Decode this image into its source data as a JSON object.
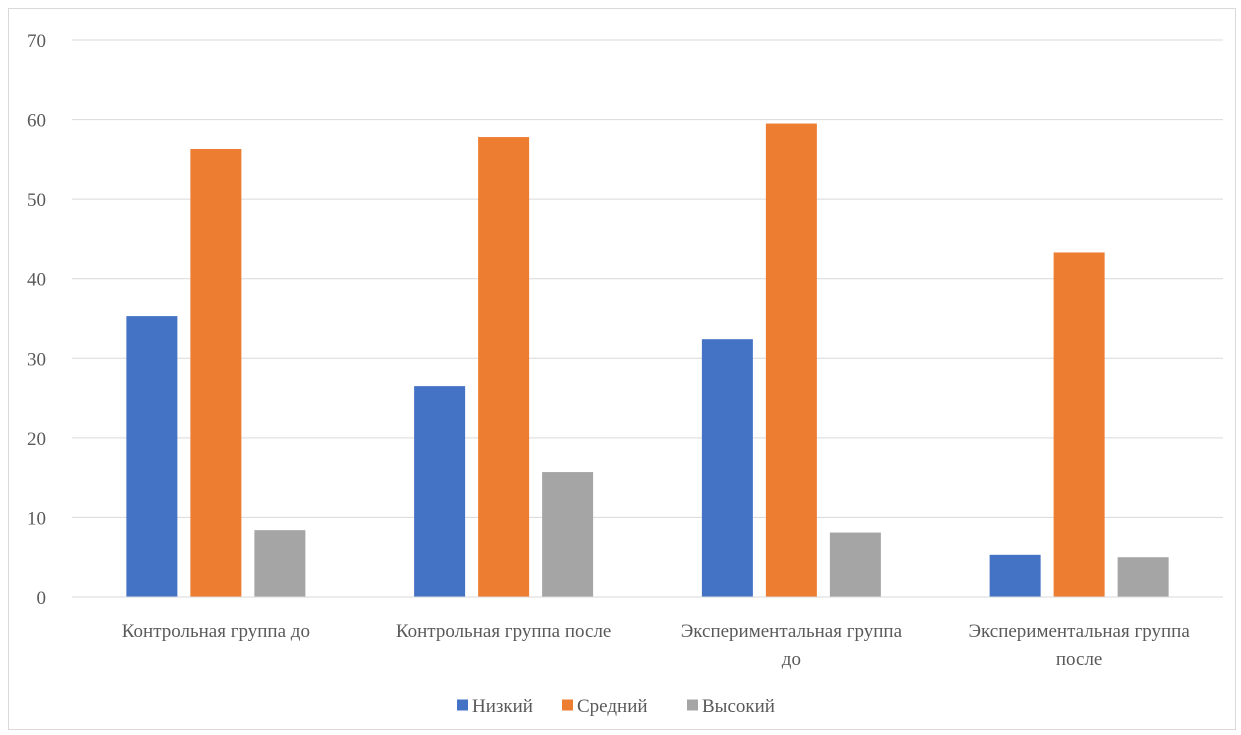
{
  "chart_data": {
    "type": "bar",
    "title": "",
    "xlabel": "",
    "ylabel": "",
    "ylim": [
      0,
      70
    ],
    "yticks": [
      0,
      10,
      20,
      30,
      40,
      50,
      60,
      70
    ],
    "grid": true,
    "legend_position": "bottom",
    "categories": [
      [
        "Контрольная группа до"
      ],
      [
        "Контрольная группа после"
      ],
      [
        "Экспериментальная группа",
        "до"
      ],
      [
        "Экспериментальная группа",
        "после"
      ]
    ],
    "series": [
      {
        "name": "Низкий",
        "color": "#4472C4",
        "values": [
          35.3,
          26.5,
          32.4,
          5.3
        ]
      },
      {
        "name": "Средний",
        "color": "#ED7D31",
        "values": [
          56.3,
          57.8,
          59.5,
          43.3
        ]
      },
      {
        "name": "Высокий",
        "color": "#A5A5A5",
        "values": [
          8.4,
          15.7,
          8.1,
          5.0
        ]
      }
    ]
  }
}
